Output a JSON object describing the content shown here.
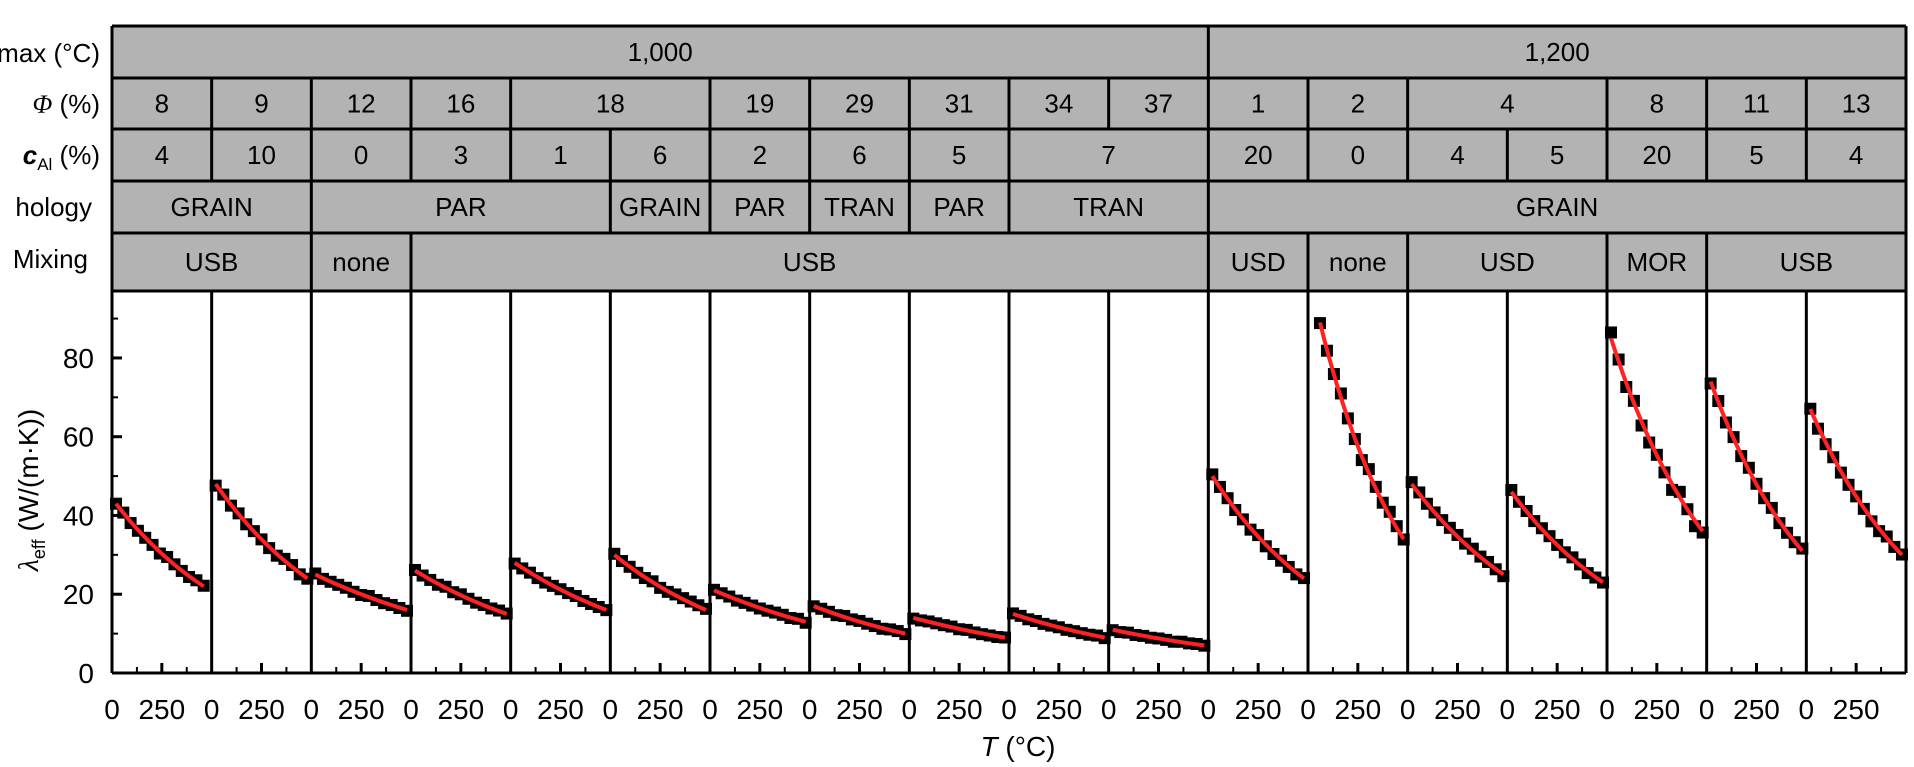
{
  "chart_data": {
    "type": "scatter",
    "ylabel": "λeff (W/(m·K))",
    "ylabel_main": "λ",
    "ylabel_sub": "eff",
    "ylabel_rest": " (W/(m·K))",
    "xlabel": "T (°C)",
    "xlabel_main": "T",
    "xlabel_rest": " (°C)",
    "ylim": [
      0,
      97
    ],
    "xlim": [
      0,
      500
    ],
    "yticks": [
      "0",
      "20",
      "40",
      "60",
      "80"
    ],
    "xticks": [
      "0",
      "250"
    ],
    "row_labels": {
      "tmax": "max (°C)",
      "phi_main": "Φ",
      "phi_rest": " (%)",
      "cal_main": "c",
      "cal_sub": "Al",
      "cal_rest": " (%)",
      "morphology": "hology",
      "mixing": "Mixing"
    },
    "header_rows": {
      "tmax": [
        {
          "label": "1,000",
          "start": 0,
          "span": 11
        },
        {
          "label": "1,200",
          "start": 11,
          "span": 7
        }
      ],
      "phi": [
        {
          "label": "8",
          "start": 0,
          "span": 1
        },
        {
          "label": "9",
          "start": 1,
          "span": 1
        },
        {
          "label": "12",
          "start": 2,
          "span": 1
        },
        {
          "label": "16",
          "start": 3,
          "span": 1
        },
        {
          "label": "18",
          "start": 4,
          "span": 2
        },
        {
          "label": "19",
          "start": 6,
          "span": 1
        },
        {
          "label": "29",
          "start": 7,
          "span": 1
        },
        {
          "label": "31",
          "start": 8,
          "span": 1
        },
        {
          "label": "34",
          "start": 9,
          "span": 1
        },
        {
          "label": "37",
          "start": 10,
          "span": 1
        },
        {
          "label": "1",
          "start": 11,
          "span": 1
        },
        {
          "label": "2",
          "start": 12,
          "span": 1
        },
        {
          "label": "4",
          "start": 13,
          "span": 2
        },
        {
          "label": "8",
          "start": 15,
          "span": 1
        },
        {
          "label": "11",
          "start": 16,
          "span": 1
        },
        {
          "label": "13",
          "start": 17,
          "span": 1
        }
      ],
      "cal": [
        {
          "label": "4",
          "start": 0,
          "span": 1
        },
        {
          "label": "10",
          "start": 1,
          "span": 1
        },
        {
          "label": "0",
          "start": 2,
          "span": 1
        },
        {
          "label": "3",
          "start": 3,
          "span": 1
        },
        {
          "label": "1",
          "start": 4,
          "span": 1
        },
        {
          "label": "6",
          "start": 5,
          "span": 1
        },
        {
          "label": "2",
          "start": 6,
          "span": 1
        },
        {
          "label": "6",
          "start": 7,
          "span": 1
        },
        {
          "label": "5",
          "start": 8,
          "span": 1
        },
        {
          "label": "7",
          "start": 9,
          "span": 2
        },
        {
          "label": "20",
          "start": 11,
          "span": 1
        },
        {
          "label": "0",
          "start": 12,
          "span": 1
        },
        {
          "label": "4",
          "start": 13,
          "span": 1
        },
        {
          "label": "5",
          "start": 14,
          "span": 1
        },
        {
          "label": "20",
          "start": 15,
          "span": 1
        },
        {
          "label": "5",
          "start": 16,
          "span": 1
        },
        {
          "label": "4",
          "start": 17,
          "span": 1
        }
      ],
      "morphology": [
        {
          "label": "GRAIN",
          "start": 0,
          "span": 2
        },
        {
          "label": "PAR",
          "start": 2,
          "span": 3
        },
        {
          "label": "GRAIN",
          "start": 5,
          "span": 1
        },
        {
          "label": "PAR",
          "start": 6,
          "span": 1
        },
        {
          "label": "TRAN",
          "start": 7,
          "span": 1
        },
        {
          "label": "PAR",
          "start": 8,
          "span": 1
        },
        {
          "label": "TRAN",
          "start": 9,
          "span": 2
        },
        {
          "label": "GRAIN",
          "start": 11,
          "span": 7
        }
      ],
      "mixing": [
        {
          "label": "USB",
          "start": 0,
          "span": 2
        },
        {
          "label": "none",
          "start": 2,
          "span": 1
        },
        {
          "label": "USB",
          "start": 3,
          "span": 8
        },
        {
          "label": "USD",
          "start": 11,
          "span": 1
        },
        {
          "label": "none",
          "start": 12,
          "span": 1
        },
        {
          "label": "USD",
          "start": 13,
          "span": 2
        },
        {
          "label": "MOR",
          "start": 15,
          "span": 1
        },
        {
          "label": "USB",
          "start": 16,
          "span": 2
        }
      ]
    },
    "series": [
      {
        "x": [
          20,
          460
        ],
        "y": [
          43,
          22
        ],
        "noise": 1.0
      },
      {
        "x": [
          20,
          480
        ],
        "y": [
          48,
          24
        ],
        "noise": 1.0
      },
      {
        "x": [
          20,
          480
        ],
        "y": [
          25,
          16
        ],
        "noise": 0.6
      },
      {
        "x": [
          20,
          480
        ],
        "y": [
          26,
          15
        ],
        "noise": 0.6
      },
      {
        "x": [
          20,
          480
        ],
        "y": [
          28,
          16
        ],
        "noise": 0.6
      },
      {
        "x": [
          20,
          480
        ],
        "y": [
          30,
          16
        ],
        "noise": 0.8
      },
      {
        "x": [
          20,
          480
        ],
        "y": [
          21,
          13
        ],
        "noise": 0.5
      },
      {
        "x": [
          20,
          480
        ],
        "y": [
          17,
          10
        ],
        "noise": 0.5
      },
      {
        "x": [
          20,
          480
        ],
        "y": [
          14,
          9
        ],
        "noise": 0.4
      },
      {
        "x": [
          20,
          480
        ],
        "y": [
          15,
          9
        ],
        "noise": 0.4
      },
      {
        "x": [
          20,
          480
        ],
        "y": [
          11,
          7
        ],
        "noise": 0.4
      },
      {
        "x": [
          20,
          480
        ],
        "y": [
          50,
          24
        ],
        "noise": 1.0
      },
      {
        "x": [
          60,
          480
        ],
        "y": [
          89,
          34
        ],
        "noise": 2.5
      },
      {
        "x": [
          20,
          480
        ],
        "y": [
          48,
          25
        ],
        "noise": 1.0
      },
      {
        "x": [
          20,
          480
        ],
        "y": [
          46,
          23
        ],
        "noise": 1.0
      },
      {
        "x": [
          20,
          480
        ],
        "y": [
          85,
          36
        ],
        "noise": 3.0
      },
      {
        "x": [
          20,
          480
        ],
        "y": [
          74,
          31
        ],
        "noise": 1.5
      },
      {
        "x": [
          20,
          480
        ],
        "y": [
          67,
          30
        ],
        "noise": 1.5
      }
    ],
    "marker_color": "#000000",
    "fit_color": "#ff2222",
    "header_fill": "#b3b3b3",
    "grid": false
  }
}
